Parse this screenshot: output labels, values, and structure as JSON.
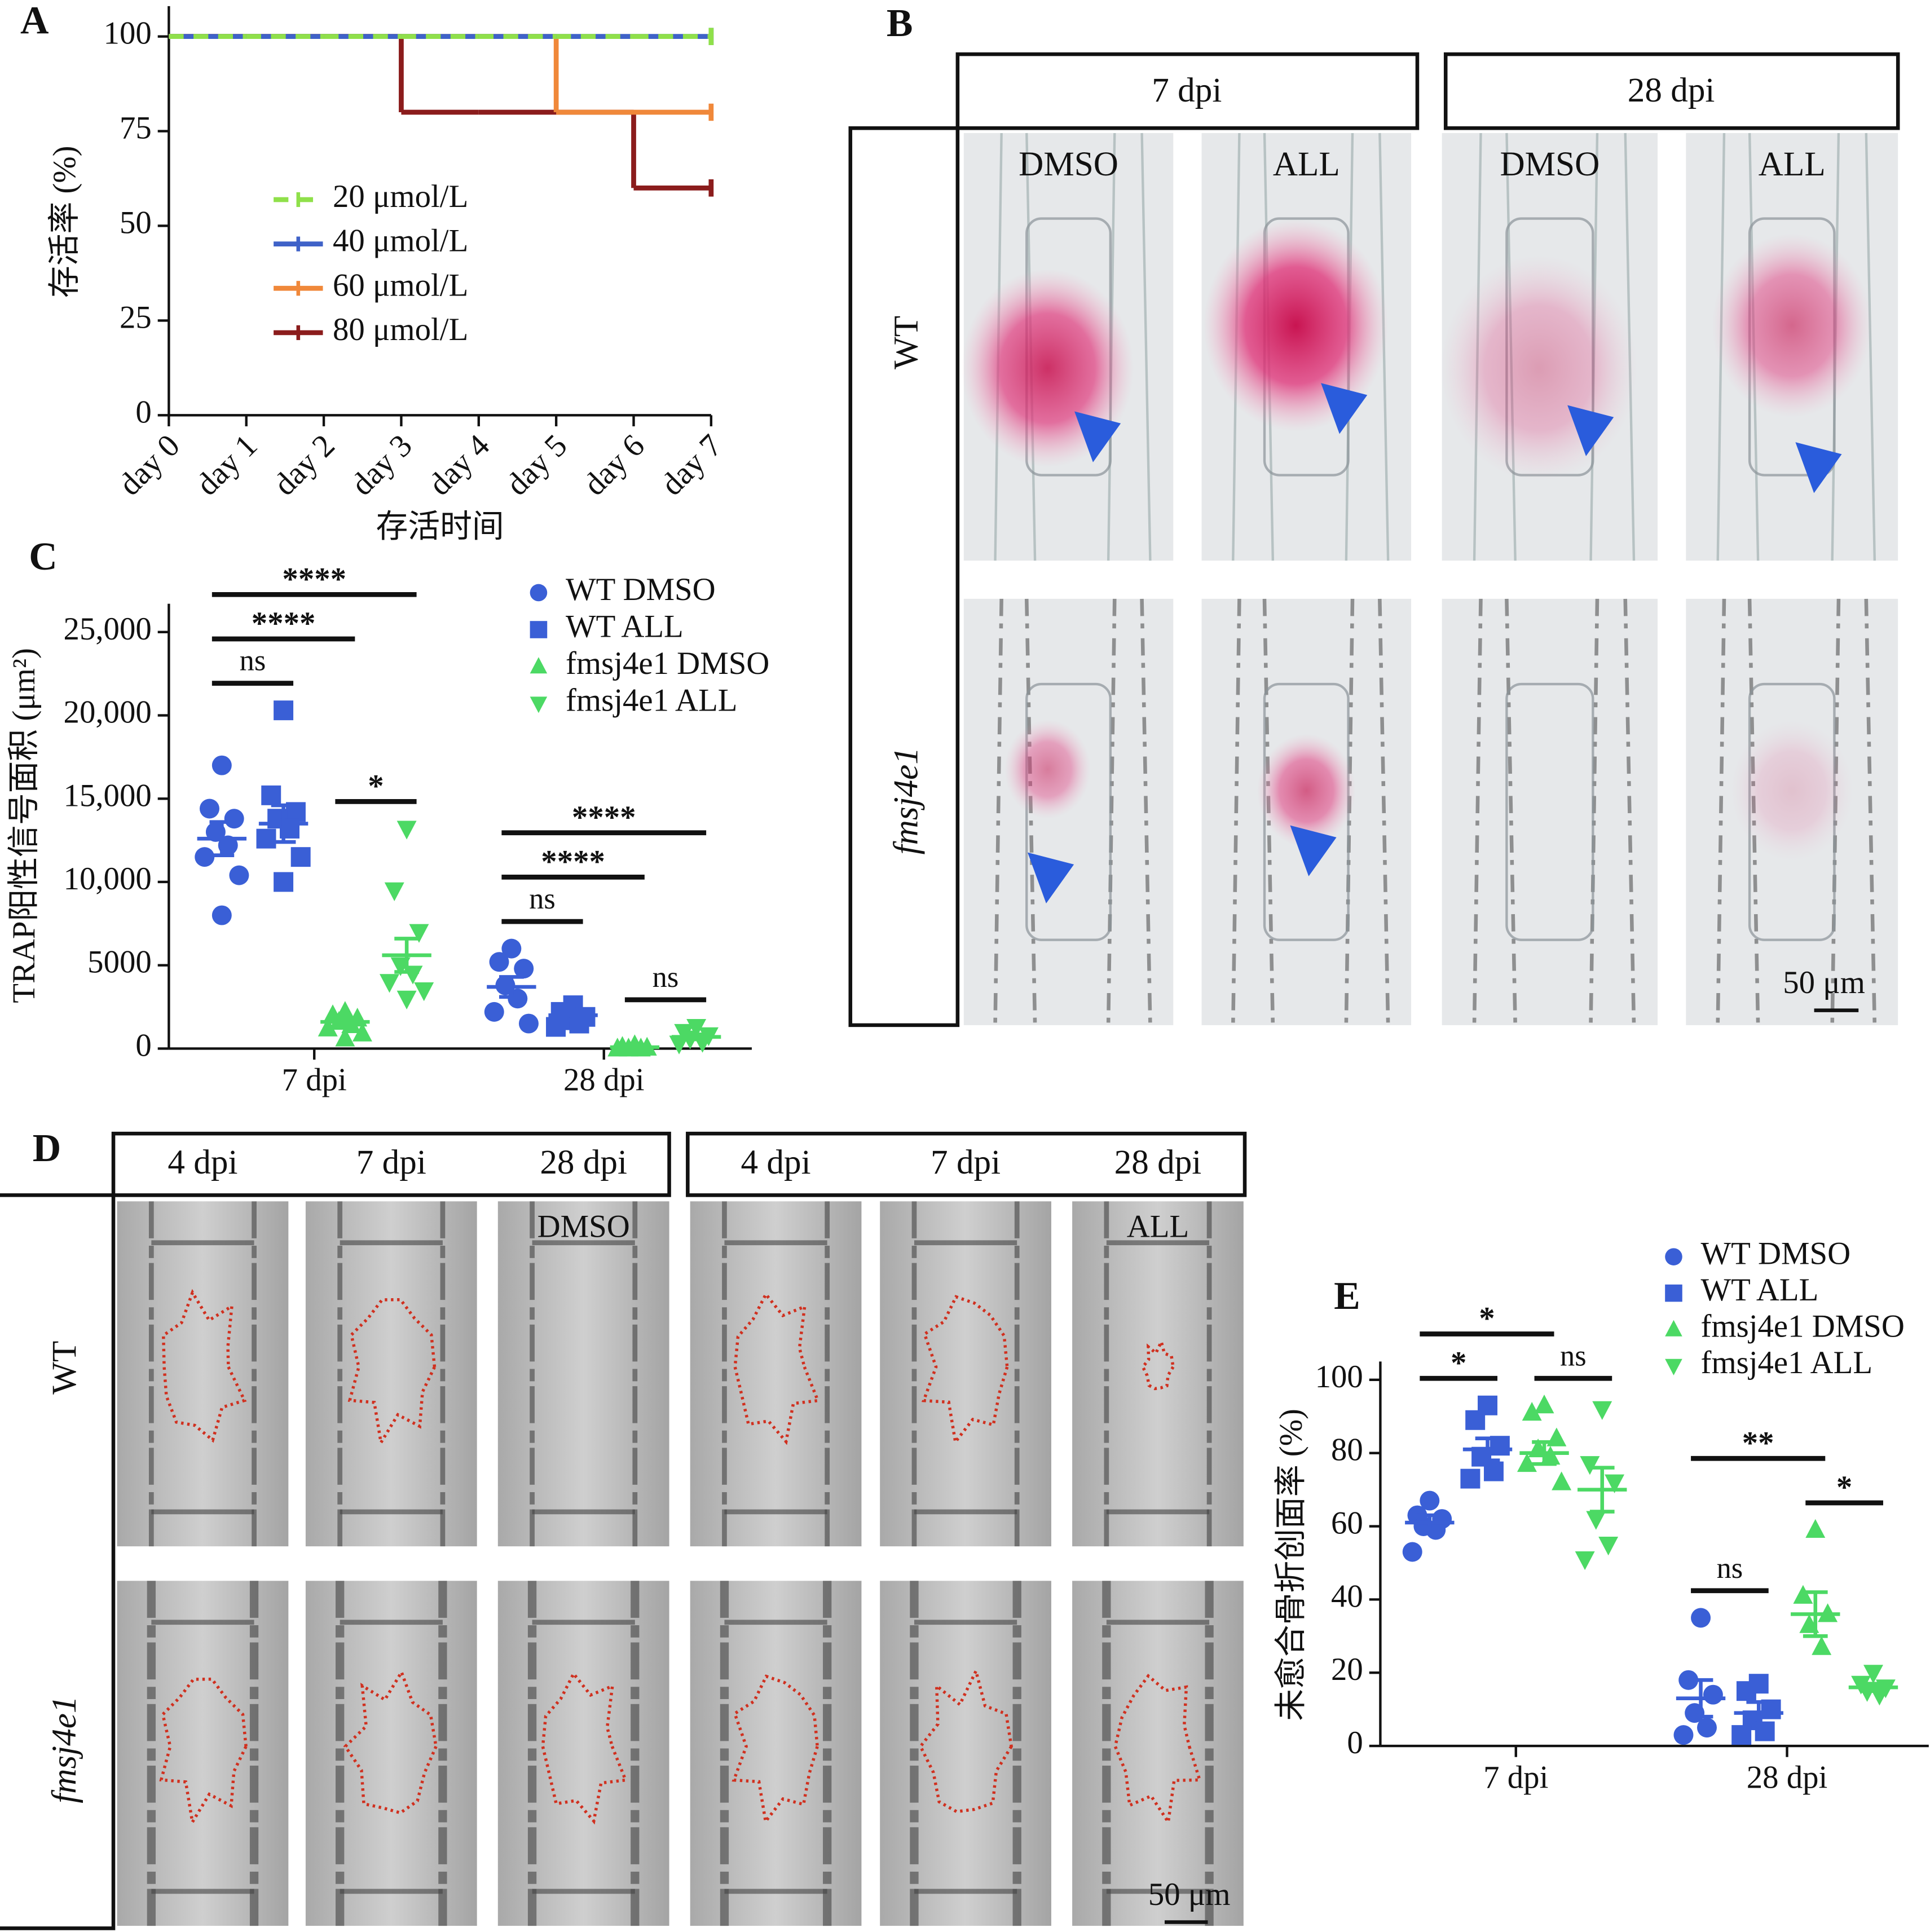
{
  "panel_labels": [
    "A",
    "B",
    "C",
    "D",
    "E"
  ],
  "chart_data": [
    {
      "type": "line",
      "step": true,
      "x_label": "存活时间",
      "y_label": "存活率 (%)",
      "categories": [
        "day 0",
        "day 1",
        "day 2",
        "day 3",
        "day 4",
        "day 5",
        "day 6",
        "day 7"
      ],
      "series": [
        {
          "name": "20 μmol/L",
          "color": "#8fe04a",
          "line_style": "dashed",
          "values": [
            100,
            100,
            100,
            100,
            100,
            100,
            100,
            100
          ]
        },
        {
          "name": "40 μmol/L",
          "color": "#3f62c8",
          "line_style": "solid",
          "values": [
            100,
            100,
            100,
            100,
            100,
            100,
            100,
            100
          ]
        },
        {
          "name": "60 μmol/L",
          "color": "#f0883a",
          "line_style": "solid",
          "values": [
            100,
            100,
            100,
            100,
            100,
            80,
            80,
            80
          ]
        },
        {
          "name": "80 μmol/L",
          "color": "#8b1c1c",
          "line_style": "solid",
          "values": [
            100,
            100,
            100,
            80,
            80,
            80,
            60,
            60
          ]
        }
      ],
      "ylim": [
        0,
        108
      ],
      "yticks": [
        0,
        25,
        50,
        75,
        100
      ]
    },
    {
      "type": "dot",
      "y_label": "TRAP阳性信号面积 (μm²)",
      "categories": [
        "7 dpi",
        "28 dpi"
      ],
      "series": [
        {
          "name": "WT DMSO",
          "color": "#3a5fd6",
          "marker": "circle",
          "points": [
            [
              17000,
              14400,
              13800,
              13000,
              12200,
              11500,
              10400,
              8000
            ],
            [
              6000,
              5200,
              4800,
              3800,
              3000,
              2200,
              1500
            ]
          ],
          "mean": [
            12600,
            3700
          ],
          "sem": [
            1000,
            600
          ]
        },
        {
          "name": "WT ALL",
          "color": "#3a5fd6",
          "marker": "square",
          "points": [
            [
              20300,
              15200,
              14200,
              13800,
              13200,
              12600,
              11500,
              10000
            ],
            [
              2600,
              2200,
              1900,
              1700,
              1500,
              1300
            ]
          ],
          "mean": [
            13500,
            2000
          ],
          "sem": [
            1100,
            300
          ]
        },
        {
          "name": "fmsj4e1 DMSO",
          "color": "#4cd964",
          "marker": "triangle-up",
          "points": [
            [
              2200,
              2000,
              1800,
              1600,
              1400,
              1200,
              900,
              600
            ],
            [
              200,
              100,
              50,
              0,
              0,
              0
            ]
          ],
          "mean": [
            1600,
            80
          ],
          "sem": [
            200,
            40
          ]
        },
        {
          "name": "fmsj4e1 ALL",
          "color": "#4cd964",
          "marker": "triangle-down",
          "points": [
            [
              13200,
              9500,
              7000,
              5000,
              4500,
              4000,
              3500,
              3000
            ],
            [
              1300,
              1000,
              800,
              600,
              400,
              300
            ]
          ],
          "mean": [
            5600,
            700
          ],
          "sem": [
            1000,
            150
          ]
        }
      ],
      "ylim": [
        0,
        26700
      ],
      "yticks": [
        0,
        5000,
        {
          "value": 10000,
          "label": "10,000"
        },
        {
          "value": 15000,
          "label": "15,000"
        },
        {
          "value": 20000,
          "label": "20,000"
        },
        {
          "value": 25000,
          "label": "25,000"
        }
      ],
      "significance": [
        {
          "category": 0,
          "from": 0,
          "to": 1,
          "label": "ns"
        },
        {
          "category": 0,
          "from": 2,
          "to": 3,
          "label": "*"
        },
        {
          "category": 0,
          "from": 0,
          "to": 2,
          "label": "****"
        },
        {
          "category": 0,
          "from": 0,
          "to": 3,
          "label": "****"
        },
        {
          "category": 1,
          "from": 0,
          "to": 1,
          "label": "ns"
        },
        {
          "category": 1,
          "from": 2,
          "to": 3,
          "label": "ns"
        },
        {
          "category": 1,
          "from": 0,
          "to": 2,
          "label": "****"
        },
        {
          "category": 1,
          "from": 0,
          "to": 3,
          "label": "****"
        }
      ]
    },
    {
      "type": "dot",
      "y_label": "未愈合骨折创面率 (%)",
      "categories": [
        "7 dpi",
        "28 dpi"
      ],
      "series": [
        {
          "name": "WT DMSO",
          "color": "#3a5fd6",
          "marker": "circle",
          "points": [
            [
              67,
              63,
              62,
              60,
              59,
              53
            ],
            [
              35,
              18,
              14,
              9,
              5,
              3
            ]
          ],
          "mean": [
            61,
            13
          ],
          "sem": [
            2,
            5
          ]
        },
        {
          "name": "WT ALL",
          "color": "#3a5fd6",
          "marker": "square",
          "points": [
            [
              93,
              89,
              82,
              79,
              75,
              73
            ],
            [
              17,
              15,
              10,
              7,
              4,
              3
            ]
          ],
          "mean": [
            81,
            9
          ],
          "sem": [
            3,
            3
          ]
        },
        {
          "name": "fmsj4e1 DMSO",
          "color": "#4cd964",
          "marker": "triangle-up",
          "points": [
            [
              93,
              91,
              84,
              81,
              79,
              77,
              72
            ],
            [
              59,
              41,
              36,
              33,
              27
            ]
          ],
          "mean": [
            80,
            36
          ],
          "sem": [
            3,
            6
          ]
        },
        {
          "name": "fmsj4e1 ALL",
          "color": "#4cd964",
          "marker": "triangle-down",
          "points": [
            [
              92,
              77,
              72,
              62,
              55,
              51
            ],
            [
              20,
              17,
              16,
              15,
              14
            ]
          ],
          "mean": [
            70,
            16
          ],
          "sem": [
            6,
            1
          ]
        }
      ],
      "ylim": [
        0,
        105
      ],
      "yticks": [
        0,
        20,
        40,
        60,
        80,
        100
      ],
      "significance": [
        {
          "category": 0,
          "from": 0,
          "to": 1,
          "label": "*"
        },
        {
          "category": 0,
          "from": 2,
          "to": 3,
          "label": "ns"
        },
        {
          "category": 0,
          "from": 0,
          "to": 2,
          "label": "*"
        },
        {
          "category": 1,
          "from": 0,
          "to": 1,
          "label": "ns"
        },
        {
          "category": 1,
          "from": 2,
          "to": 3,
          "label": "*"
        },
        {
          "category": 1,
          "from": 0,
          "to": 2,
          "label": "**"
        }
      ]
    }
  ],
  "panel_b": {
    "columns": [
      {
        "header": "7 dpi",
        "treatments": [
          "DMSO",
          "ALL"
        ]
      },
      {
        "header": "28 dpi",
        "treatments": [
          "DMSO",
          "ALL"
        ]
      }
    ],
    "rows": [
      "WT",
      "fmsj4e1"
    ],
    "scale_bar": "50 μm"
  },
  "panel_d": {
    "groups": [
      {
        "columns": [
          "4 dpi",
          "7 dpi",
          "28 dpi"
        ],
        "treatment": "DMSO"
      },
      {
        "columns": [
          "4 dpi",
          "7 dpi",
          "28 dpi"
        ],
        "treatment": "ALL"
      }
    ],
    "rows": [
      "WT",
      "fmsj4e1"
    ],
    "scale_bar": "50 μm"
  }
}
